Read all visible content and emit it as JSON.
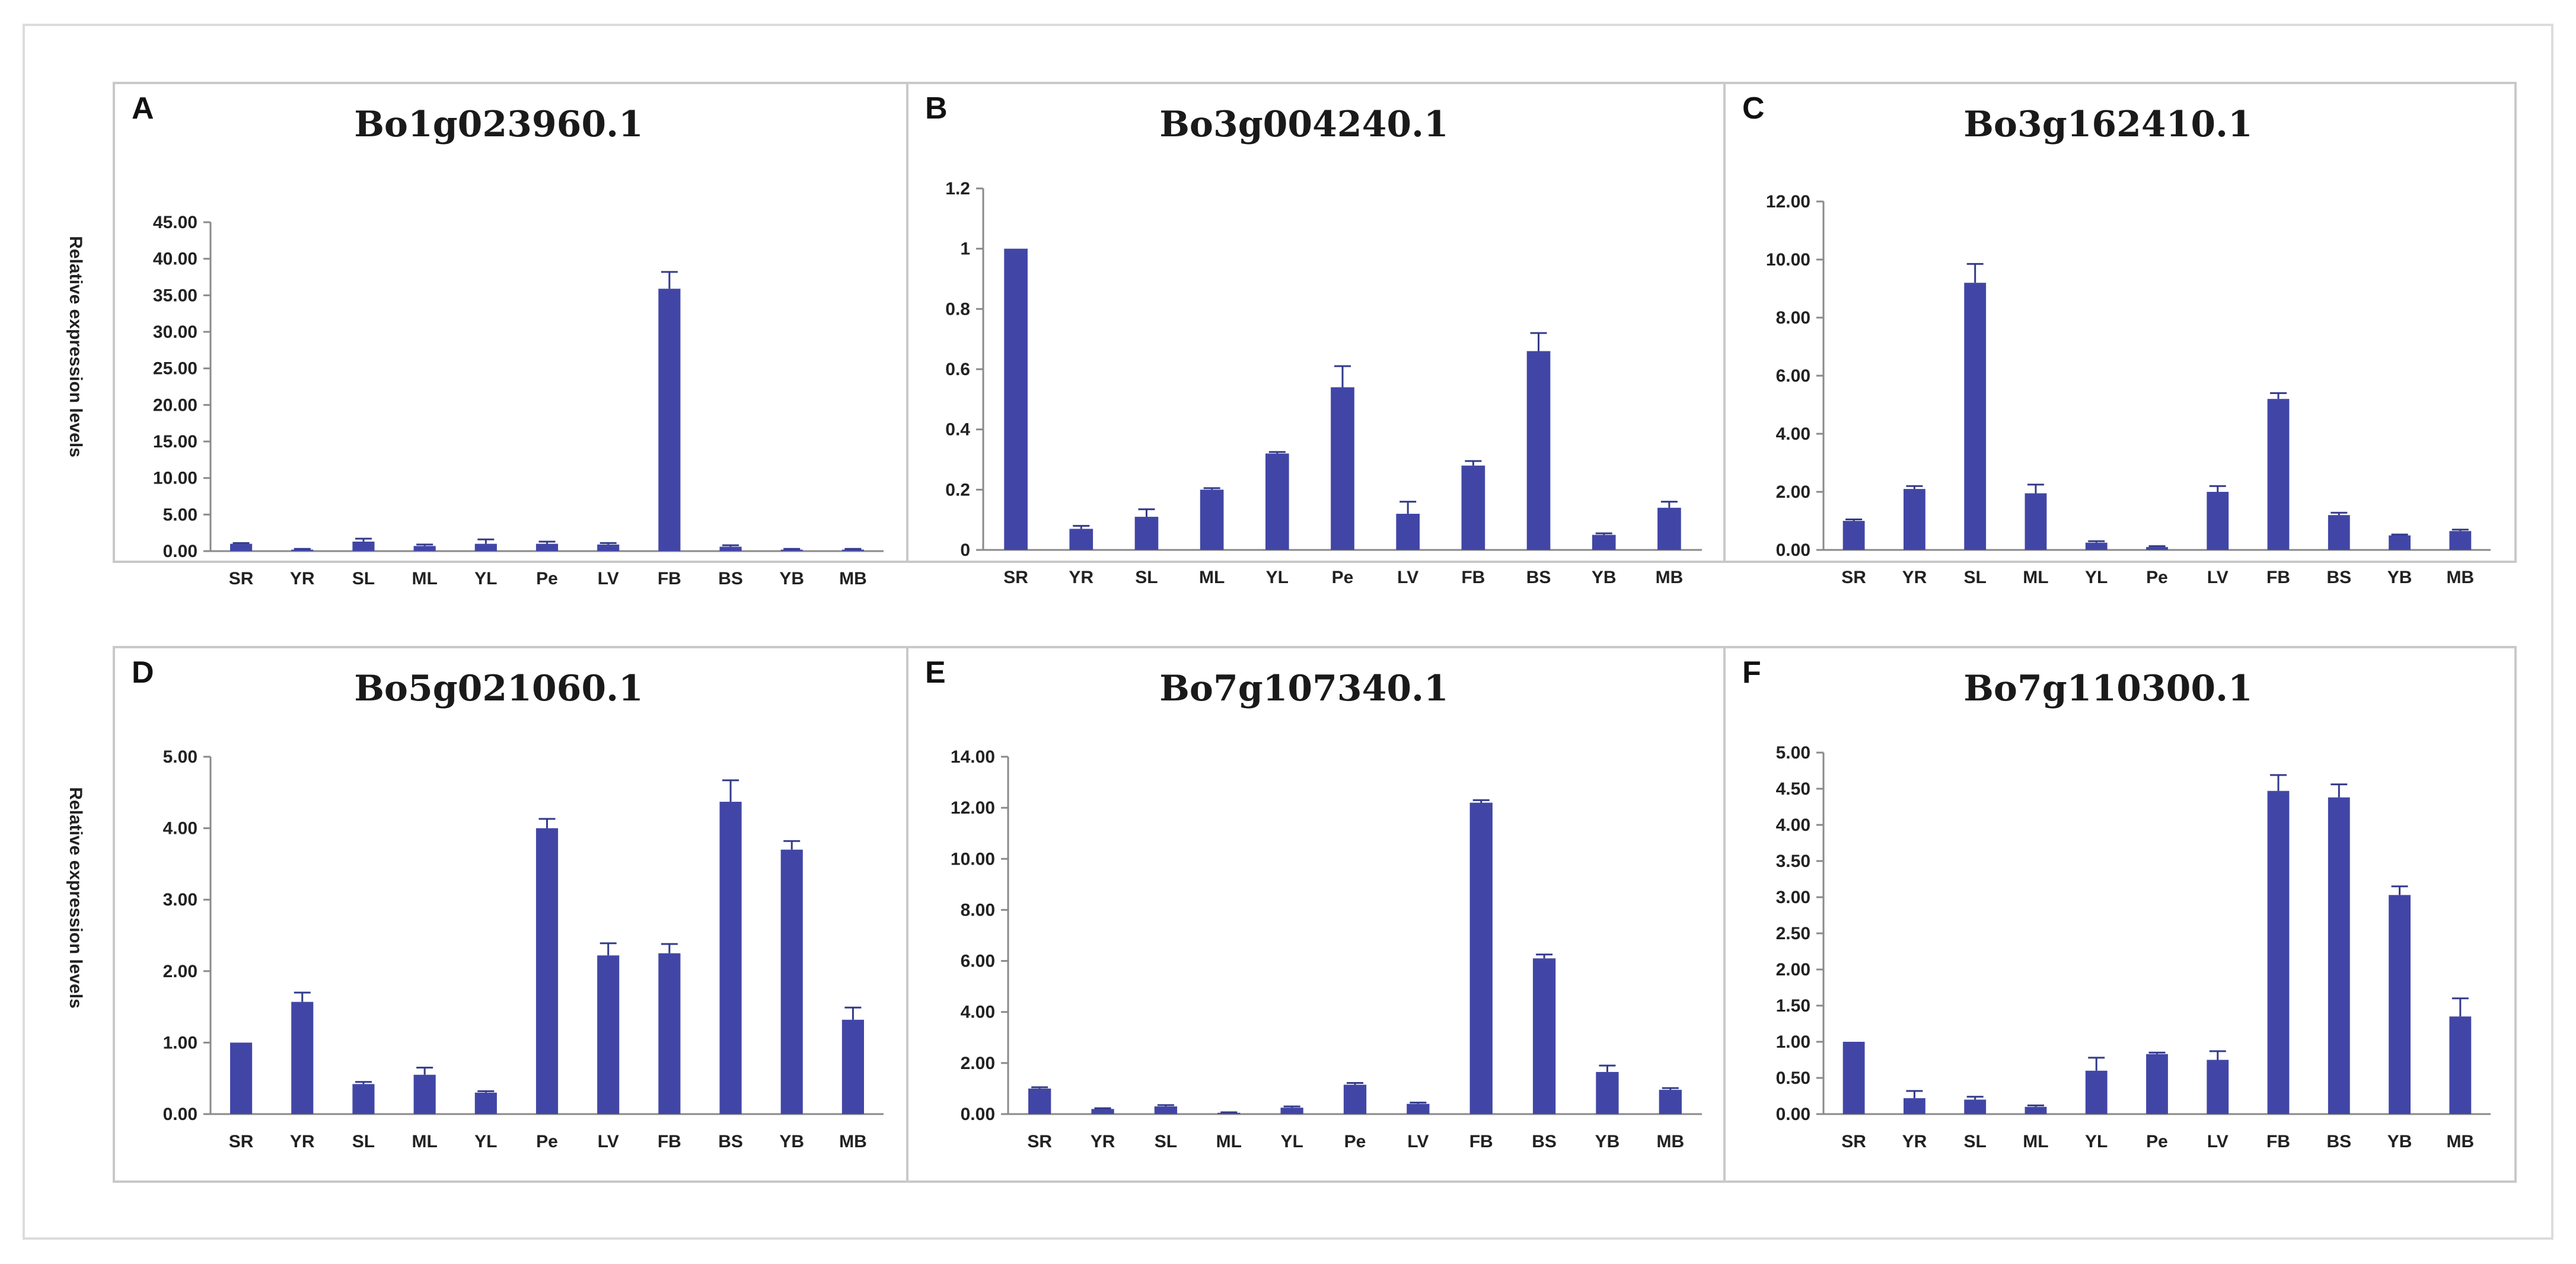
{
  "figure": {
    "ylabel_top": "Relative expression levels",
    "ylabel_bottom": "Relative expression levels"
  },
  "chart_data": [
    {
      "type": "bar",
      "panel": "A",
      "title": "Bo1g023960.1",
      "ylabel": "Relative expression levels",
      "categories": [
        "SR",
        "YR",
        "SL",
        "ML",
        "YL",
        "Pe",
        "LV",
        "FB",
        "BS",
        "YB",
        "MB"
      ],
      "values": [
        1.0,
        0.2,
        1.3,
        0.7,
        1.0,
        1.0,
        0.9,
        35.9,
        0.6,
        0.2,
        0.2
      ],
      "errors": [
        0.1,
        0.1,
        0.4,
        0.2,
        0.6,
        0.3,
        0.2,
        2.3,
        0.2,
        0.1,
        0.1
      ],
      "ylim": [
        0,
        45
      ],
      "ticks": [
        "0.00",
        "5.00",
        "10.00",
        "15.00",
        "20.00",
        "25.00",
        "30.00",
        "35.00",
        "40.00",
        "45.00"
      ]
    },
    {
      "type": "bar",
      "panel": "B",
      "title": "Bo3g004240.1",
      "ylabel": "",
      "categories": [
        "SR",
        "YR",
        "SL",
        "ML",
        "YL",
        "Pe",
        "LV",
        "FB",
        "BS",
        "YB",
        "MB"
      ],
      "values": [
        1.0,
        0.07,
        0.11,
        0.2,
        0.32,
        0.54,
        0.12,
        0.28,
        0.66,
        0.05,
        0.14
      ],
      "errors": [
        0.0,
        0.01,
        0.025,
        0.005,
        0.005,
        0.07,
        0.04,
        0.015,
        0.06,
        0.005,
        0.02
      ],
      "ylim": [
        0,
        1.2
      ],
      "ticks": [
        "0",
        "0.2",
        "0.4",
        "0.6",
        "0.8",
        "1",
        "1.2"
      ]
    },
    {
      "type": "bar",
      "panel": "C",
      "title": "Bo3g162410.1",
      "ylabel": "",
      "categories": [
        "SR",
        "YR",
        "SL",
        "ML",
        "YL",
        "Pe",
        "LV",
        "FB",
        "BS",
        "YB",
        "MB"
      ],
      "values": [
        1.0,
        2.1,
        9.2,
        1.95,
        0.25,
        0.1,
        2.0,
        5.2,
        1.2,
        0.5,
        0.65
      ],
      "errors": [
        0.05,
        0.1,
        0.65,
        0.3,
        0.05,
        0.03,
        0.2,
        0.2,
        0.08,
        0.03,
        0.05
      ],
      "ylim": [
        0,
        12
      ],
      "ticks": [
        "0.00",
        "2.00",
        "4.00",
        "6.00",
        "8.00",
        "10.00",
        "12.00"
      ]
    },
    {
      "type": "bar",
      "panel": "D",
      "title": "Bo5g021060.1",
      "ylabel": "Relative expression levels",
      "categories": [
        "SR",
        "YR",
        "SL",
        "ML",
        "YL",
        "Pe",
        "LV",
        "FB",
        "BS",
        "YB",
        "MB"
      ],
      "values": [
        1.0,
        1.57,
        0.42,
        0.55,
        0.3,
        4.0,
        2.22,
        2.25,
        4.37,
        3.7,
        1.32
      ],
      "errors": [
        0.0,
        0.13,
        0.03,
        0.1,
        0.02,
        0.13,
        0.17,
        0.13,
        0.3,
        0.12,
        0.17
      ],
      "ylim": [
        0,
        5
      ],
      "ticks": [
        "0.00",
        "1.00",
        "2.00",
        "3.00",
        "4.00",
        "5.00"
      ]
    },
    {
      "type": "bar",
      "panel": "E",
      "title": "Bo7g107340.1",
      "ylabel": "",
      "categories": [
        "SR",
        "YR",
        "SL",
        "ML",
        "YL",
        "Pe",
        "LV",
        "FB",
        "BS",
        "YB",
        "MB"
      ],
      "values": [
        1.0,
        0.2,
        0.3,
        0.05,
        0.25,
        1.15,
        0.4,
        12.2,
        6.1,
        1.65,
        0.95
      ],
      "errors": [
        0.05,
        0.03,
        0.05,
        0.02,
        0.05,
        0.07,
        0.05,
        0.1,
        0.15,
        0.25,
        0.07
      ],
      "ylim": [
        0,
        14
      ],
      "ticks": [
        "0.00",
        "2.00",
        "4.00",
        "6.00",
        "8.00",
        "10.00",
        "12.00",
        "14.00"
      ]
    },
    {
      "type": "bar",
      "panel": "F",
      "title": "Bo7g110300.1",
      "ylabel": "",
      "categories": [
        "SR",
        "YR",
        "SL",
        "ML",
        "YL",
        "Pe",
        "LV",
        "FB",
        "BS",
        "YB",
        "MB"
      ],
      "values": [
        1.0,
        0.22,
        0.2,
        0.1,
        0.6,
        0.83,
        0.75,
        4.47,
        4.38,
        3.03,
        1.35
      ],
      "errors": [
        0.0,
        0.1,
        0.04,
        0.02,
        0.18,
        0.02,
        0.12,
        0.22,
        0.18,
        0.12,
        0.25
      ],
      "ylim": [
        0,
        5
      ],
      "ticks": [
        "0.00",
        "0.50",
        "1.00",
        "1.50",
        "2.00",
        "2.50",
        "3.00",
        "3.50",
        "4.00",
        "4.50",
        "5.00"
      ]
    }
  ]
}
